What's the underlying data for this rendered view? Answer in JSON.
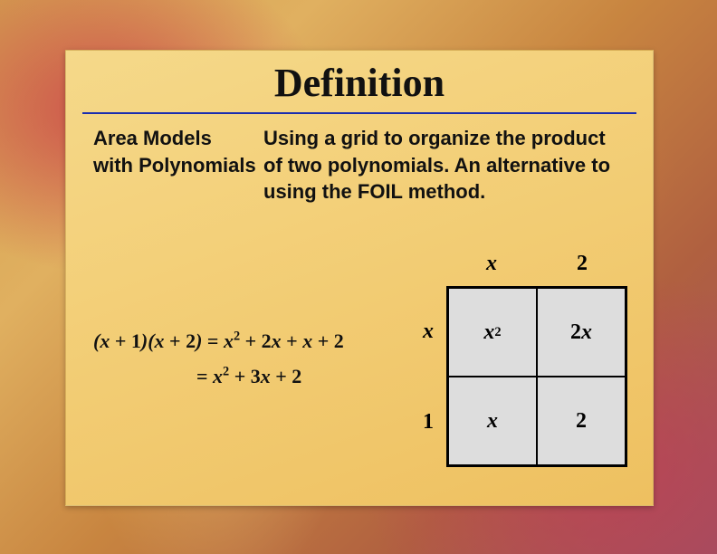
{
  "title": "Definition",
  "term": "Area Models with Polynomials",
  "description": "Using a grid to organize the product of two polynomials. An alternative to using the FOIL method.",
  "equation": {
    "line1_html": "(<span class='it'>x</span> <span class='up'>+ 1</span>)(<span class='it'>x</span> <span class='up'>+ 2</span>) <span class='up'>=</span> <span class='it'>x</span><sup>2</sup> <span class='up'>+ 2</span><span class='it'>x</span> <span class='up'>+</span> <span class='it'>x</span> <span class='up'>+ 2</span>",
    "line2_html": "<span class='up'>=</span> <span class='it'>x</span><sup>2</sup> <span class='up'>+ 3</span><span class='it'>x</span> <span class='up'>+ 2</span>"
  },
  "area_model": {
    "col_headers_html": [
      "<span class='it'>x</span>",
      "2"
    ],
    "row_headers_html": [
      "<span class='it'>x</span>",
      "1"
    ],
    "cells_html": [
      "<span class='it'>x</span><sup>2</sup>",
      "2<span class='it'>x</span>",
      "<span class='it'>x</span>",
      "2"
    ],
    "cell_bg": "#dddddd",
    "border_color": "#000000"
  },
  "colors": {
    "rule": "#1a2db0",
    "text": "#111111"
  }
}
